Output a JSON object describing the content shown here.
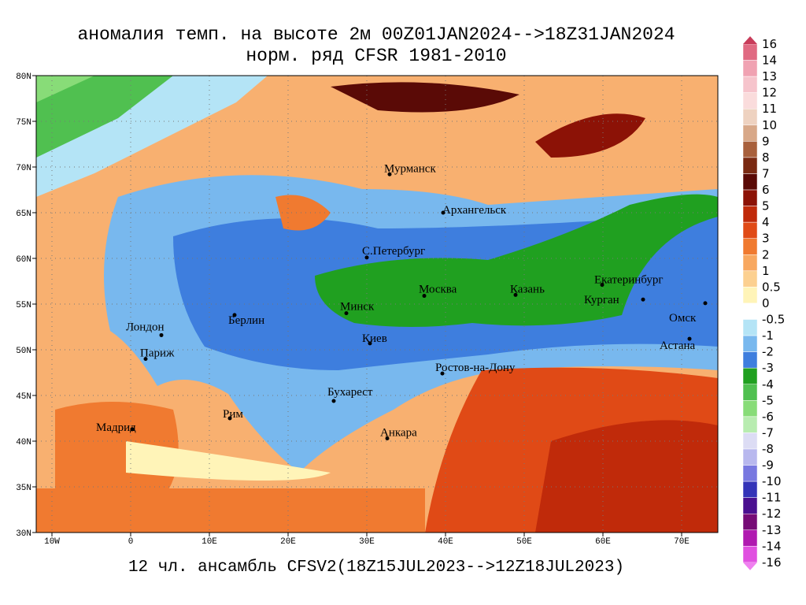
{
  "header": {
    "title_line1": "аномалия темп. на высоте 2м 00Z01JAN2024-->18Z31JAN2024",
    "title_line2": "норм. ряд CFSR 1981-2010"
  },
  "footer": "12 чл. ансамбль CFSV2(18Z15JUL2023-->12Z18JUL2023)",
  "map": {
    "xlim": [
      -12,
      74.6
    ],
    "ylim": [
      30,
      80
    ],
    "xticks": [
      {
        "value": -10,
        "label": "10W"
      },
      0,
      {
        "value": 10,
        "label": "10E"
      },
      {
        "value": 20,
        "label": "20E"
      },
      {
        "value": 30,
        "label": "30E"
      },
      {
        "value": 40,
        "label": "40E"
      },
      {
        "value": 50,
        "label": "50E"
      },
      {
        "value": 60,
        "label": "60E"
      },
      {
        "value": 70,
        "label": "70E"
      }
    ],
    "yticks": [
      {
        "value": 30,
        "label": "30N"
      },
      {
        "value": 35,
        "label": "35N"
      },
      {
        "value": 40,
        "label": "40N"
      },
      {
        "value": 45,
        "label": "45N"
      },
      {
        "value": 50,
        "label": "50N"
      },
      {
        "value": 55,
        "label": "55N"
      },
      {
        "value": 60,
        "label": "60N"
      },
      {
        "value": 65,
        "label": "65N"
      },
      {
        "value": 70,
        "label": "70N"
      },
      {
        "value": 75,
        "label": "75N"
      },
      {
        "value": 80,
        "label": "80N"
      }
    ],
    "cities": [
      {
        "name": "Мурманск",
        "lon": 32.9,
        "lat": 69.2
      },
      {
        "name": "Архангельск",
        "lon": 39.7,
        "lat": 65.0
      },
      {
        "name": "С.Петербург",
        "lon": 30.0,
        "lat": 60.1
      },
      {
        "name": "Москва",
        "lon": 37.3,
        "lat": 55.9
      },
      {
        "name": "Казань",
        "lon": 48.9,
        "lat": 56.0
      },
      {
        "name": "Екатеринбург",
        "lon": 59.9,
        "lat": 57.1
      },
      {
        "name": "Курган",
        "lon": 65.1,
        "lat": 55.5
      },
      {
        "name": "Омск",
        "lon": 73.0,
        "lat": 55.1
      },
      {
        "name": "Астана",
        "lon": 71.0,
        "lat": 51.2
      },
      {
        "name": "Минск",
        "lon": 27.4,
        "lat": 54.0
      },
      {
        "name": "Берлин",
        "lon": 13.2,
        "lat": 53.8
      },
      {
        "name": "Лондон",
        "lon": 3.9,
        "lat": 51.6
      },
      {
        "name": "Париж",
        "lon": 1.9,
        "lat": 49.0
      },
      {
        "name": "Киев",
        "lon": 30.4,
        "lat": 50.7
      },
      {
        "name": "Ростов-на-Дону",
        "lon": 39.6,
        "lat": 47.4
      },
      {
        "name": "Бухарест",
        "lon": 25.8,
        "lat": 44.4
      },
      {
        "name": "Рим",
        "lon": 12.6,
        "lat": 42.5
      },
      {
        "name": "Мадрид",
        "lon": 0.2,
        "lat": 41.3
      },
      {
        "name": "Анкара",
        "lon": 32.6,
        "lat": 40.3
      }
    ]
  },
  "colorbar": {
    "levels": [
      16,
      14,
      13,
      12,
      11,
      10,
      9,
      8,
      7,
      6,
      5,
      4,
      3,
      2,
      1,
      0.5,
      0,
      -0.5,
      -1,
      -2,
      -3,
      -4,
      -5,
      -6,
      -7,
      -8,
      -9,
      -10,
      -11,
      -12,
      -13,
      -14,
      -16
    ],
    "colors": [
      "#e06a82",
      "#f0a2b2",
      "#f6c4cc",
      "#fadcdc",
      "#eed2c0",
      "#d8a888",
      "#a8603c",
      "#7a2a12",
      "#5a0a06",
      "#8c1206",
      "#c02a0a",
      "#e04a16",
      "#f07a30",
      "#f8a860",
      "#fcd090",
      "#fff4b8",
      "#ffffff",
      "#b4e4f6",
      "#78b8ee",
      "#3e7ede",
      "#20a020",
      "#50c050",
      "#88dc78",
      "#b8ecb0",
      "#dcdcf4",
      "#b8b8ee",
      "#7878e0",
      "#3434b8",
      "#4a1090",
      "#760c76",
      "#b01ab0",
      "#e050e0"
    ]
  }
}
